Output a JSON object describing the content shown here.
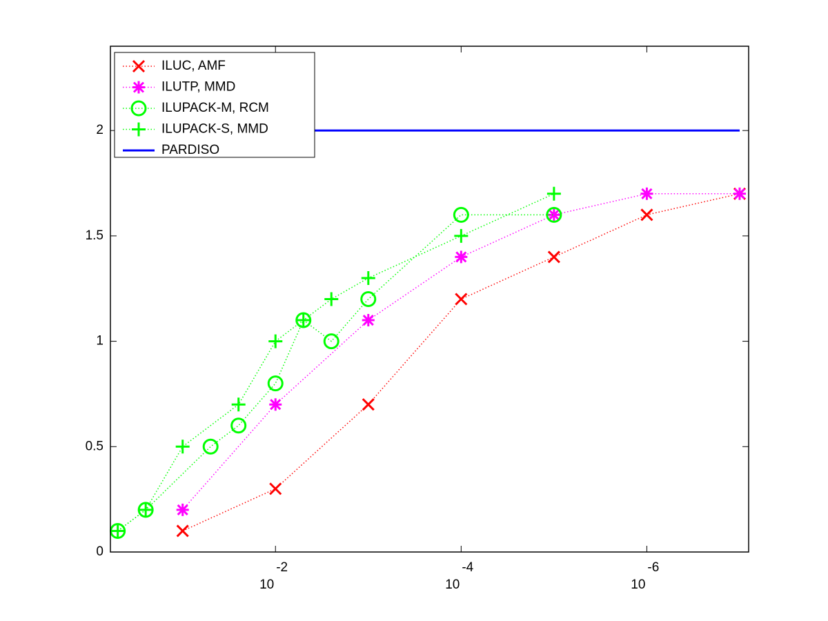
{
  "chart_data": {
    "type": "line",
    "xscale": "log",
    "xlim": [
      0.6,
      8e-08
    ],
    "xticks": [
      {
        "value": 0.01,
        "label": "10",
        "exponent": "-2"
      },
      {
        "value": 0.0001,
        "label": "10",
        "exponent": "-4"
      },
      {
        "value": 1e-06,
        "label": "10",
        "exponent": "-6"
      }
    ],
    "ylim": [
      0,
      2.4
    ],
    "yticks": [
      0,
      0.5,
      1,
      {
        "value": 1.5,
        "label": "1.5"
      },
      2
    ],
    "legend": "upper left",
    "series": [
      {
        "name": "ILUC, AMF",
        "color": "#ff0000",
        "marker": "x",
        "linestyle": "dotted",
        "x": [
          0.1,
          0.01,
          0.001,
          0.0001,
          1e-05,
          1e-06,
          1e-07
        ],
        "values": [
          0.1,
          0.3,
          0.7,
          1.2,
          1.4,
          1.6,
          1.7
        ]
      },
      {
        "name": "ILUTP, MMD",
        "color": "#ff00ff",
        "marker": "asterisk",
        "linestyle": "dotted",
        "x": [
          0.1,
          0.01,
          0.001,
          0.0001,
          1e-05,
          1e-06,
          1e-07
        ],
        "values": [
          0.2,
          0.7,
          1.1,
          1.4,
          1.6,
          1.7,
          1.7
        ]
      },
      {
        "name": "ILUPACK-M, RCM",
        "color": "#00ff00",
        "marker": "circle",
        "linestyle": "dotted",
        "x": [
          0.5,
          0.25,
          0.05,
          0.025,
          0.01,
          0.005,
          0.0025,
          0.001,
          0.0001,
          1e-05
        ],
        "values": [
          0.1,
          0.2,
          0.5,
          0.6,
          0.8,
          1.1,
          1.0,
          1.2,
          1.6,
          1.6
        ]
      },
      {
        "name": "ILUPACK-S, MMD",
        "color": "#00ff00",
        "marker": "plus",
        "linestyle": "dotted",
        "x": [
          0.5,
          0.25,
          0.1,
          0.025,
          0.01,
          0.005,
          0.0025,
          0.001,
          0.0001,
          1e-05
        ],
        "values": [
          0.1,
          0.2,
          0.5,
          0.7,
          1.0,
          1.1,
          1.2,
          1.3,
          1.5,
          1.7
        ]
      },
      {
        "name": "PARDISO",
        "color": "#0000ff",
        "marker": "none",
        "linestyle": "solid",
        "x": [
          0.01,
          1e-07
        ],
        "values": [
          2,
          2
        ]
      }
    ]
  }
}
